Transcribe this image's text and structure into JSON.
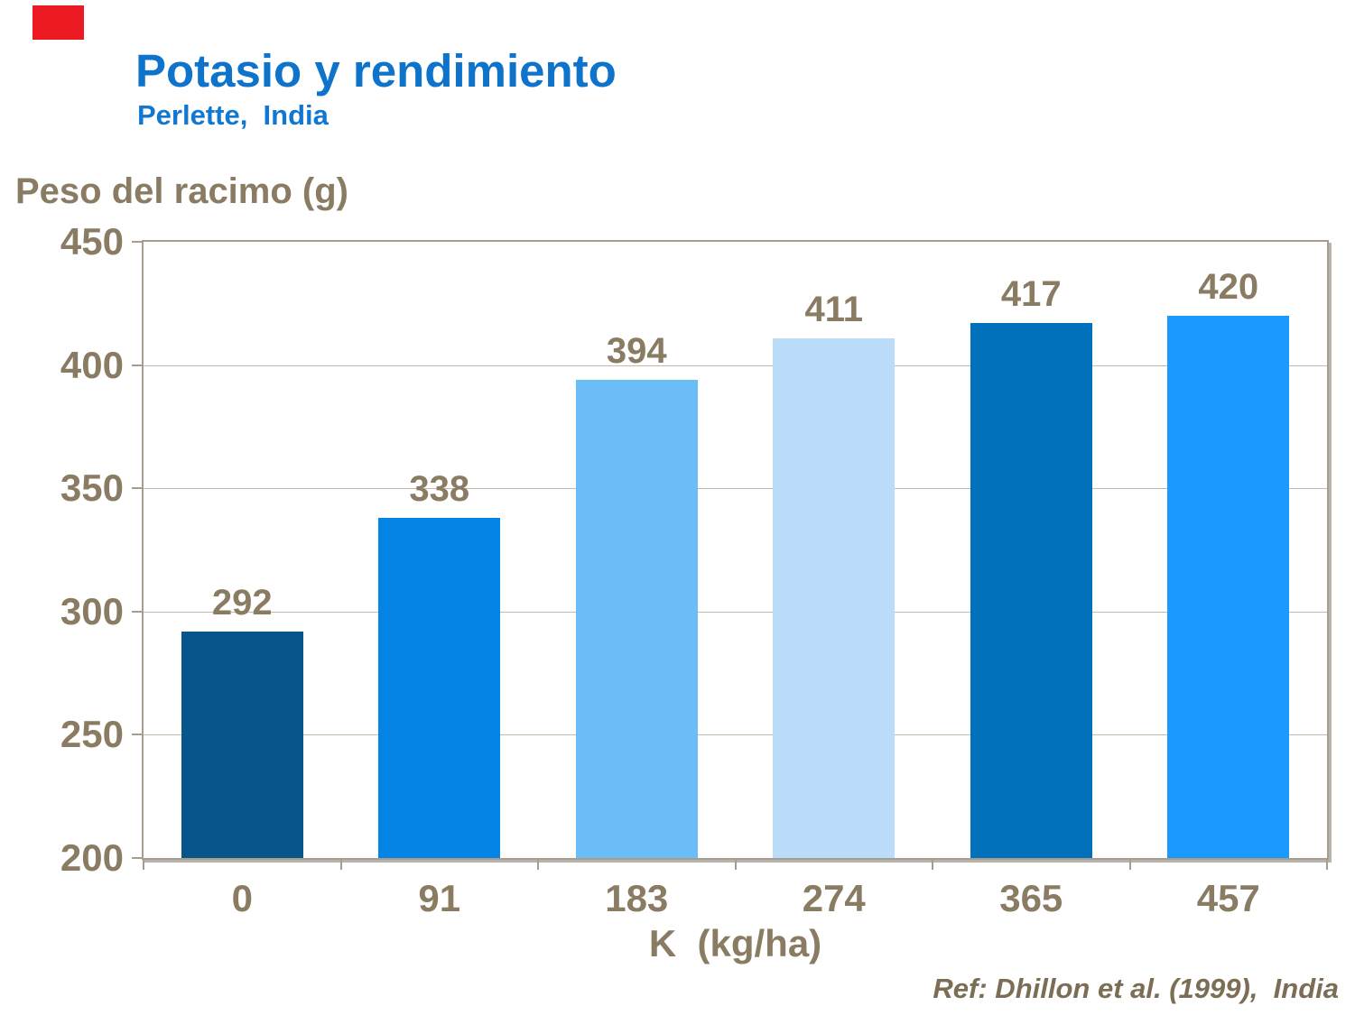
{
  "slide": {
    "logo_color": "#EC1B23",
    "title": "Potasio y rendimiento",
    "subtitle": "Perlette,  India",
    "reference": "Ref: Dhillon et al. (1999),  India"
  },
  "chart_data": {
    "type": "bar",
    "title": "Potasio y rendimiento",
    "subtitle": "Perlette, India",
    "categories": [
      "0",
      "91",
      "183",
      "274",
      "365",
      "457"
    ],
    "values": [
      292,
      338,
      394,
      411,
      417,
      420
    ],
    "bar_colors": [
      "#08558C",
      "#0484E4",
      "#6BBDF8",
      "#BBDDF9",
      "#0071BA",
      "#1B9AFE"
    ],
    "xlabel": "K  (kg/ha)",
    "ylabel": "Peso del racimo (g)",
    "ylim": [
      200,
      450
    ],
    "yticks": [
      200,
      250,
      300,
      350,
      400,
      450
    ],
    "grid": true,
    "legend": "none",
    "bar_width_fraction": 0.62,
    "colors": {
      "gridline": "#C4BAAC",
      "axis_border": "#A79D8E",
      "tick_label": "#8A7B63",
      "title_blue": "#0E74CB"
    }
  }
}
